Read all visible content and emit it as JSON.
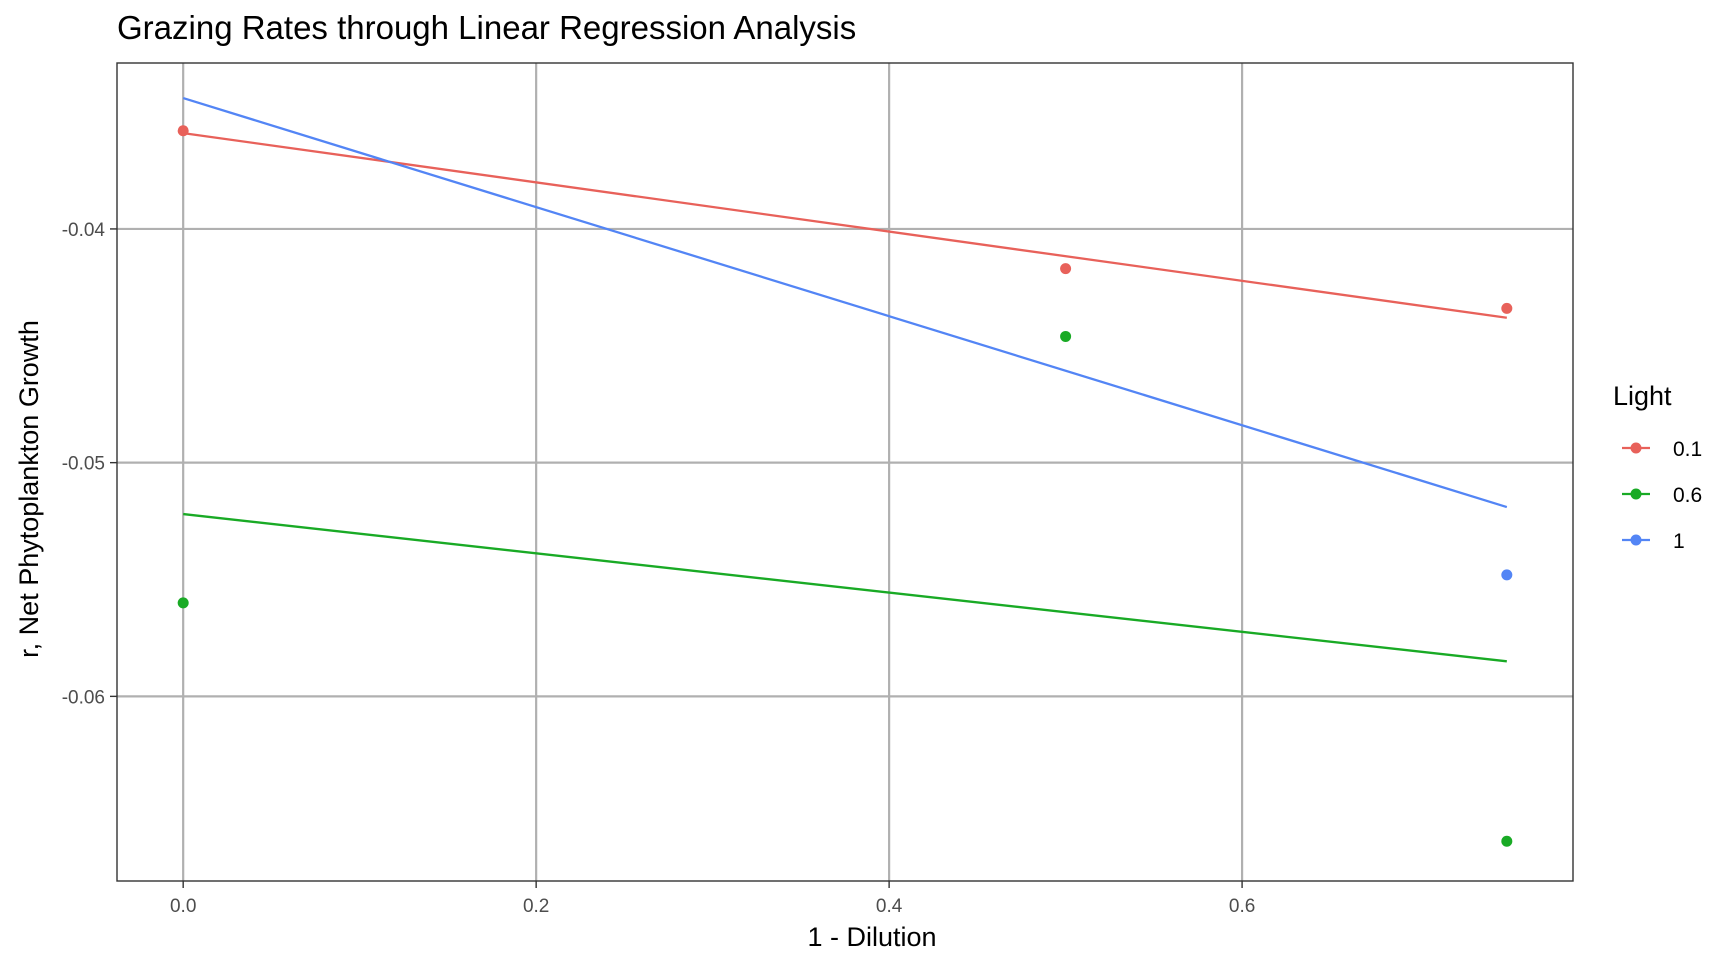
{
  "chart_data": {
    "type": "scatter",
    "title": "Grazing Rates through Linear Regression Analysis",
    "xlabel": "1 - Dilution",
    "ylabel": "r, Net Phytoplankton Growth",
    "xlim": [
      -0.0375,
      0.7875
    ],
    "ylim": [
      -0.0679,
      -0.0329
    ],
    "x_ticks": [
      0.0,
      0.2,
      0.4,
      0.6
    ],
    "x_tick_labels": [
      "0.0",
      "0.2",
      "0.4",
      "0.6"
    ],
    "y_ticks": [
      -0.04,
      -0.05,
      -0.06
    ],
    "y_tick_labels": [
      "-0.04",
      "-0.05",
      "-0.06"
    ],
    "grid": true,
    "legend": {
      "title": "Light",
      "position": "right"
    },
    "series": [
      {
        "name": "0.1",
        "color": "#e8615a",
        "points": [
          {
            "x": 0.0,
            "y": -0.0358
          },
          {
            "x": 0.5,
            "y": -0.0417
          },
          {
            "x": 0.75,
            "y": -0.0434
          }
        ],
        "fit": {
          "x": [
            0.0,
            0.75
          ],
          "y": [
            -0.0359,
            -0.0438
          ]
        }
      },
      {
        "name": "0.6",
        "color": "#19aa25",
        "points": [
          {
            "x": 0.0,
            "y": -0.056
          },
          {
            "x": 0.5,
            "y": -0.0446
          },
          {
            "x": 0.75,
            "y": -0.0662
          }
        ],
        "fit": {
          "x": [
            0.0,
            0.75
          ],
          "y": [
            -0.0522,
            -0.0585
          ]
        }
      },
      {
        "name": "1",
        "color": "#5385f5",
        "points": [
          {
            "x": 0.75,
            "y": -0.0548
          }
        ],
        "fit": {
          "x": [
            0.0,
            0.75
          ],
          "y": [
            -0.0344,
            -0.0519
          ]
        }
      }
    ]
  }
}
